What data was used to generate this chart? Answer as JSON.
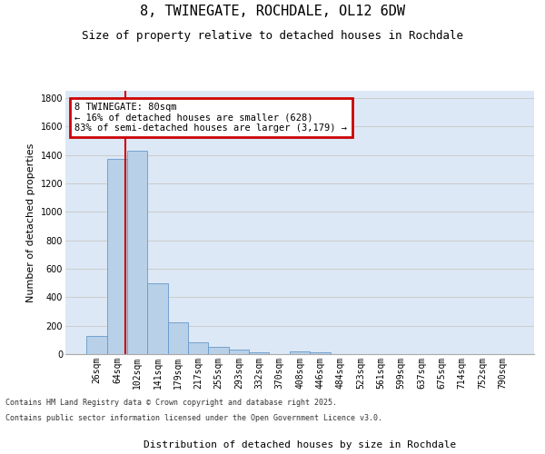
{
  "title": "8, TWINEGATE, ROCHDALE, OL12 6DW",
  "subtitle": "Size of property relative to detached houses in Rochdale",
  "xlabel": "Distribution of detached houses by size in Rochdale",
  "ylabel": "Number of detached properties",
  "categories": [
    "26sqm",
    "64sqm",
    "102sqm",
    "141sqm",
    "179sqm",
    "217sqm",
    "255sqm",
    "293sqm",
    "332sqm",
    "370sqm",
    "408sqm",
    "446sqm",
    "484sqm",
    "523sqm",
    "561sqm",
    "599sqm",
    "637sqm",
    "675sqm",
    "714sqm",
    "752sqm",
    "790sqm"
  ],
  "values": [
    130,
    1370,
    1430,
    500,
    225,
    80,
    50,
    30,
    15,
    0,
    20,
    10,
    0,
    0,
    0,
    0,
    0,
    0,
    0,
    0,
    0
  ],
  "bar_color": "#b8d0e8",
  "bar_edge_color": "#6699cc",
  "annotation_text": "8 TWINEGATE: 80sqm\n← 16% of detached houses are smaller (628)\n83% of semi-detached houses are larger (3,179) →",
  "annotation_box_color": "#cc0000",
  "vline_x": 1.4,
  "vline_color": "#cc0000",
  "ylim": [
    0,
    1850
  ],
  "yticks": [
    0,
    200,
    400,
    600,
    800,
    1000,
    1200,
    1400,
    1600,
    1800
  ],
  "grid_color": "#cccccc",
  "bg_color": "#dce8f5",
  "footer1": "Contains HM Land Registry data © Crown copyright and database right 2025.",
  "footer2": "Contains public sector information licensed under the Open Government Licence v3.0.",
  "title_fontsize": 11,
  "subtitle_fontsize": 9,
  "axis_label_fontsize": 8,
  "tick_fontsize": 7,
  "annotation_fontsize": 7.5,
  "footer_fontsize": 6
}
